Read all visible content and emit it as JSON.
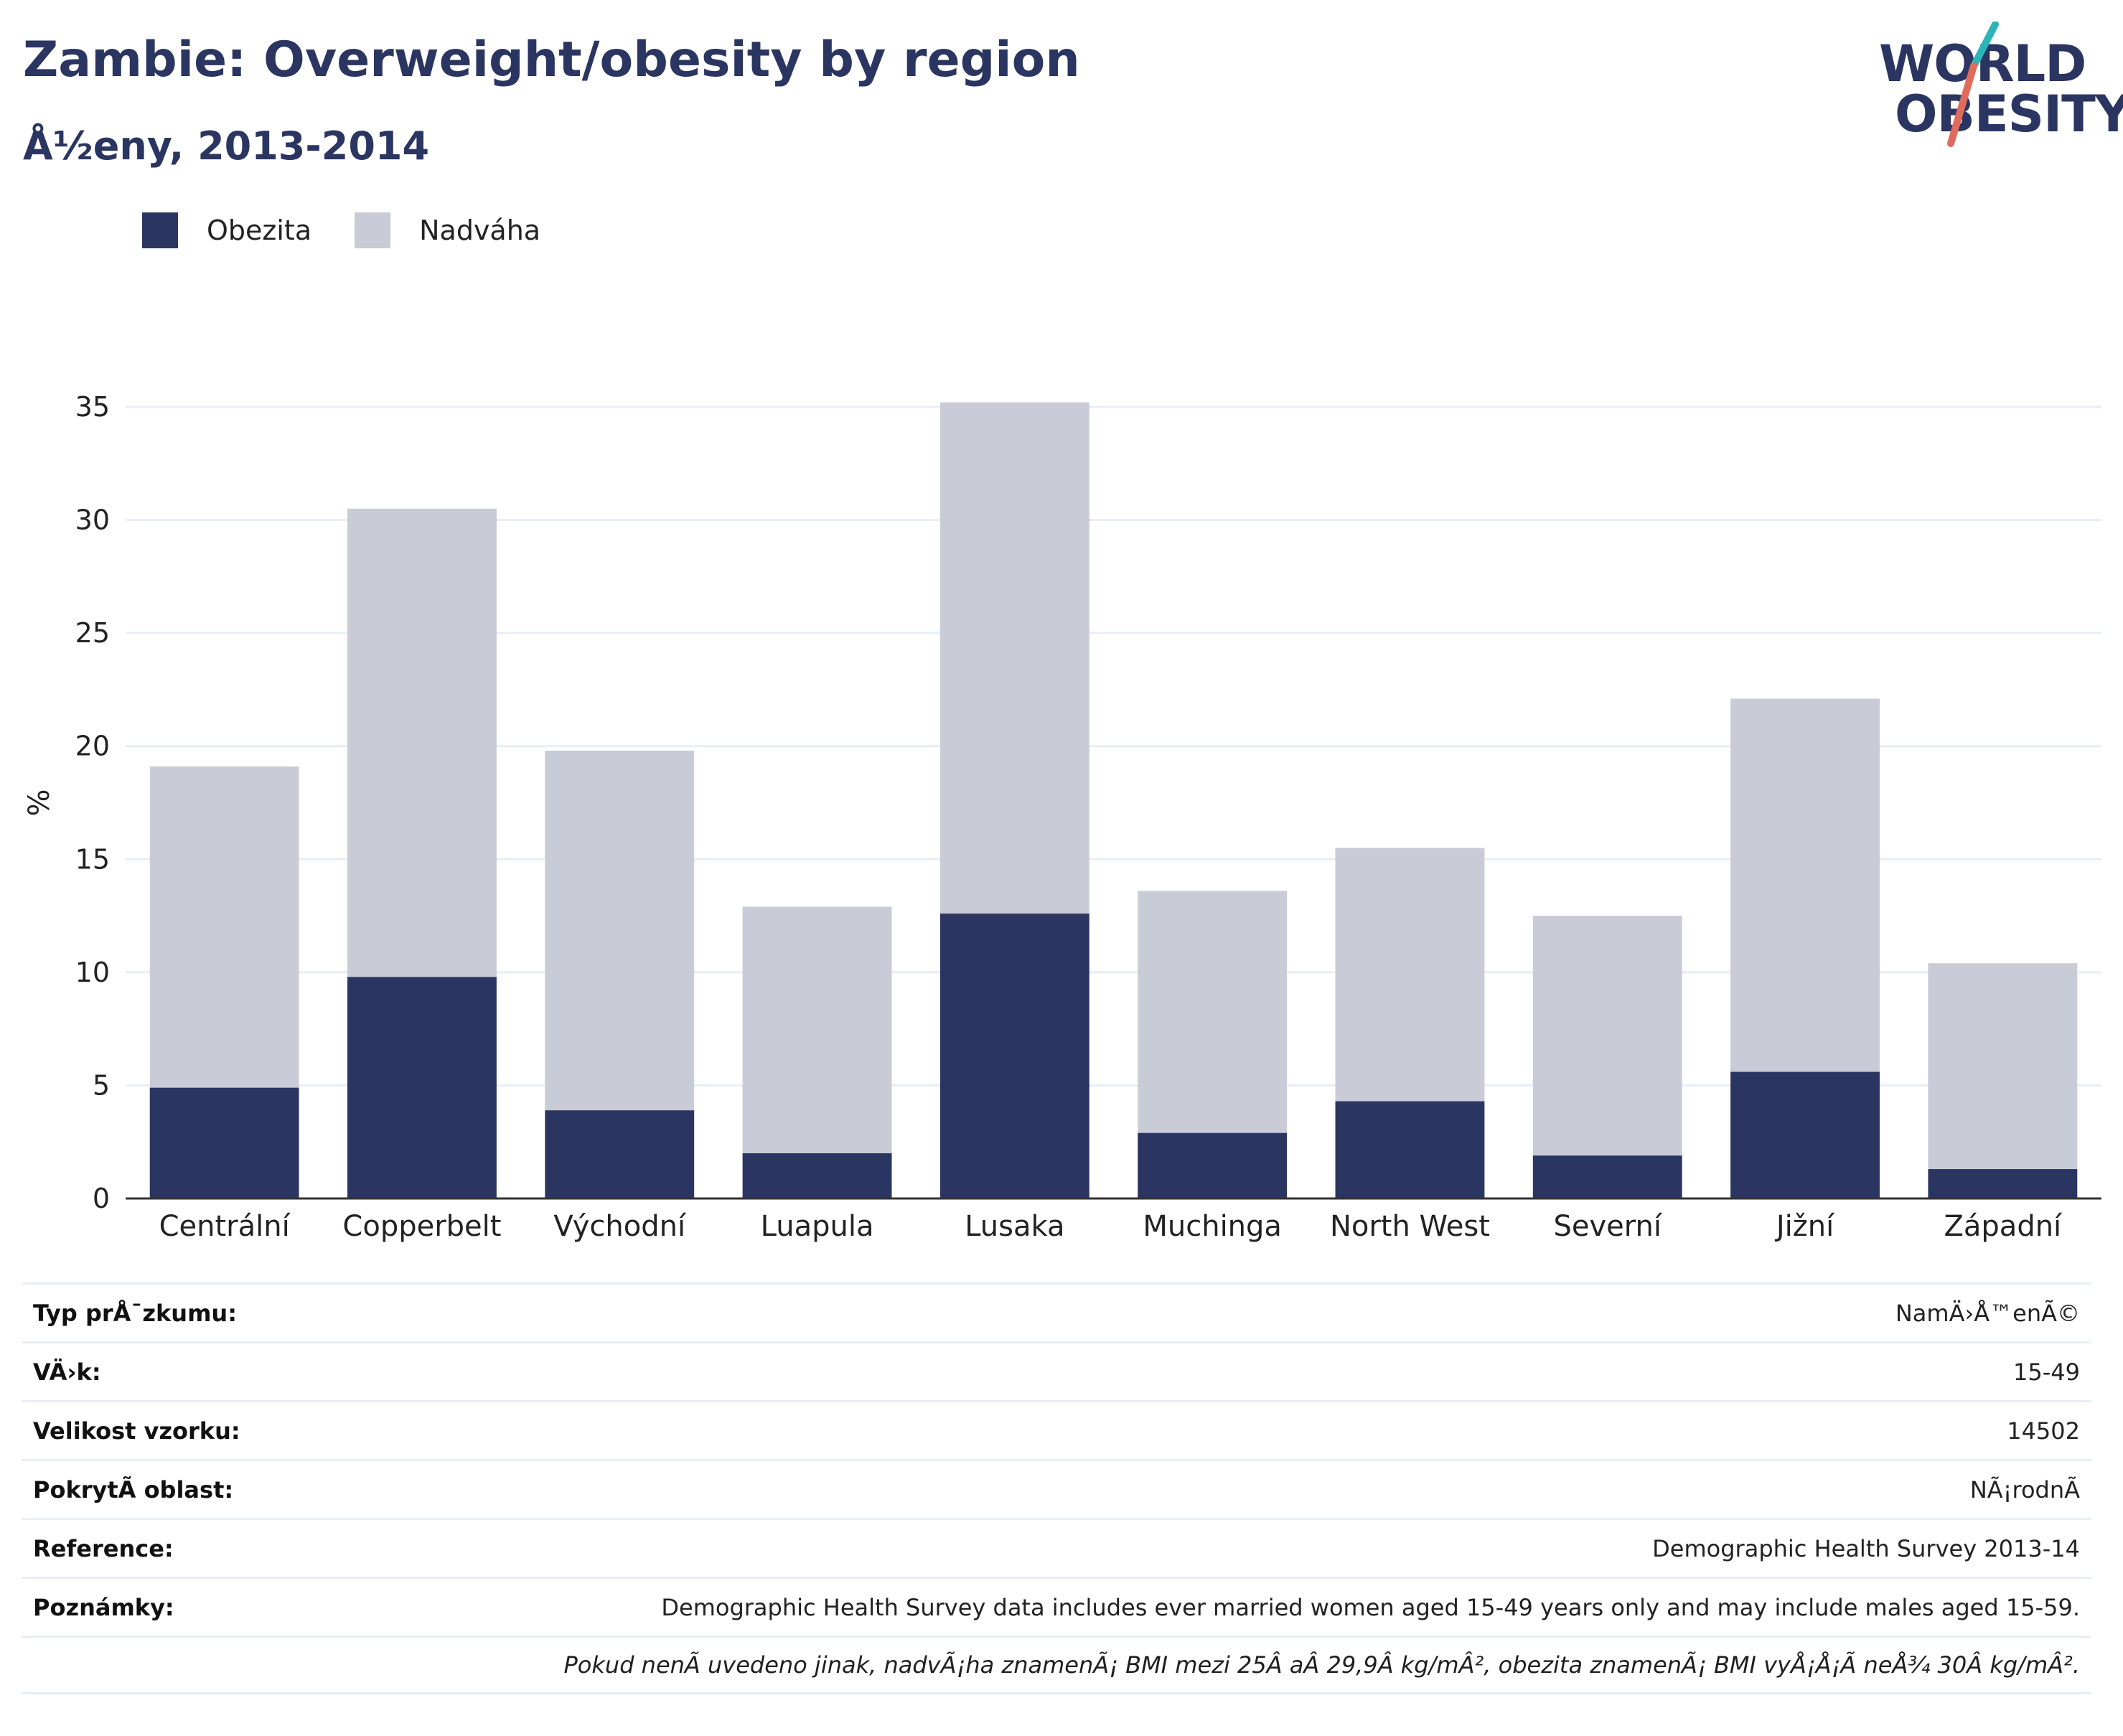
{
  "header": {
    "title": "Zambie: Overweight/obesity by region",
    "subtitle": "Å½eny, 2013-2014"
  },
  "logo": {
    "line1": "WORLD",
    "line2": "OBESITY"
  },
  "colors": {
    "obesity": "#2b3561",
    "overweight": "#c9cbd6",
    "title": "#2b3561",
    "grid": "#e8eef5",
    "logo_teal": "#2cb5b8",
    "logo_red": "#e06b5c"
  },
  "legend": {
    "obesity_label": "Obezita",
    "overweight_label": "Nadváha"
  },
  "chart_data": {
    "type": "bar",
    "stacked": true,
    "categories": [
      "Centrální",
      "Copperbelt",
      "Východní",
      "Luapula",
      "Lusaka",
      "Muchinga",
      "North West",
      "Severní",
      "Jižní",
      "Západní"
    ],
    "series": [
      {
        "name": "Obezita",
        "values": [
          4.9,
          9.8,
          3.9,
          2.0,
          12.6,
          2.9,
          4.3,
          1.9,
          5.6,
          1.3
        ]
      },
      {
        "name": "Nadváha",
        "values": [
          14.2,
          20.7,
          15.9,
          10.9,
          22.6,
          10.7,
          11.2,
          10.6,
          16.5,
          9.1
        ]
      }
    ],
    "ylabel": "%",
    "ylim": [
      0,
      35
    ],
    "yticks": [
      0,
      5,
      10,
      15,
      20,
      25,
      30,
      35
    ],
    "grid": true,
    "legend_position": "top-left"
  },
  "meta": [
    {
      "key": "Typ prÅ¯zkumu:",
      "value": "NamÄ›Å™enÃ©"
    },
    {
      "key": "VÄ›k:",
      "value": "15-49"
    },
    {
      "key": "Velikost vzorku:",
      "value": "14502"
    },
    {
      "key": "PokrytÃ­ oblast:",
      "value": "NÃ¡rodnÃ"
    },
    {
      "key": "Reference:",
      "value": "Demographic Health Survey 2013-14"
    },
    {
      "key": "Poznámky:",
      "value": "Demographic Health Survey data includes ever married women aged 15-49 years only and may include males aged 15-59."
    }
  ],
  "footnote": "Pokud nenÃ uvedeno jinak, nadvÃ¡ha znamenÃ¡ BMI mezi 25Â aÂ 29,9Â kg/mÂ², obezita znamenÃ¡ BMI vyÅ¡Å¡Ã neÅ¾ 30Â kg/mÂ²."
}
